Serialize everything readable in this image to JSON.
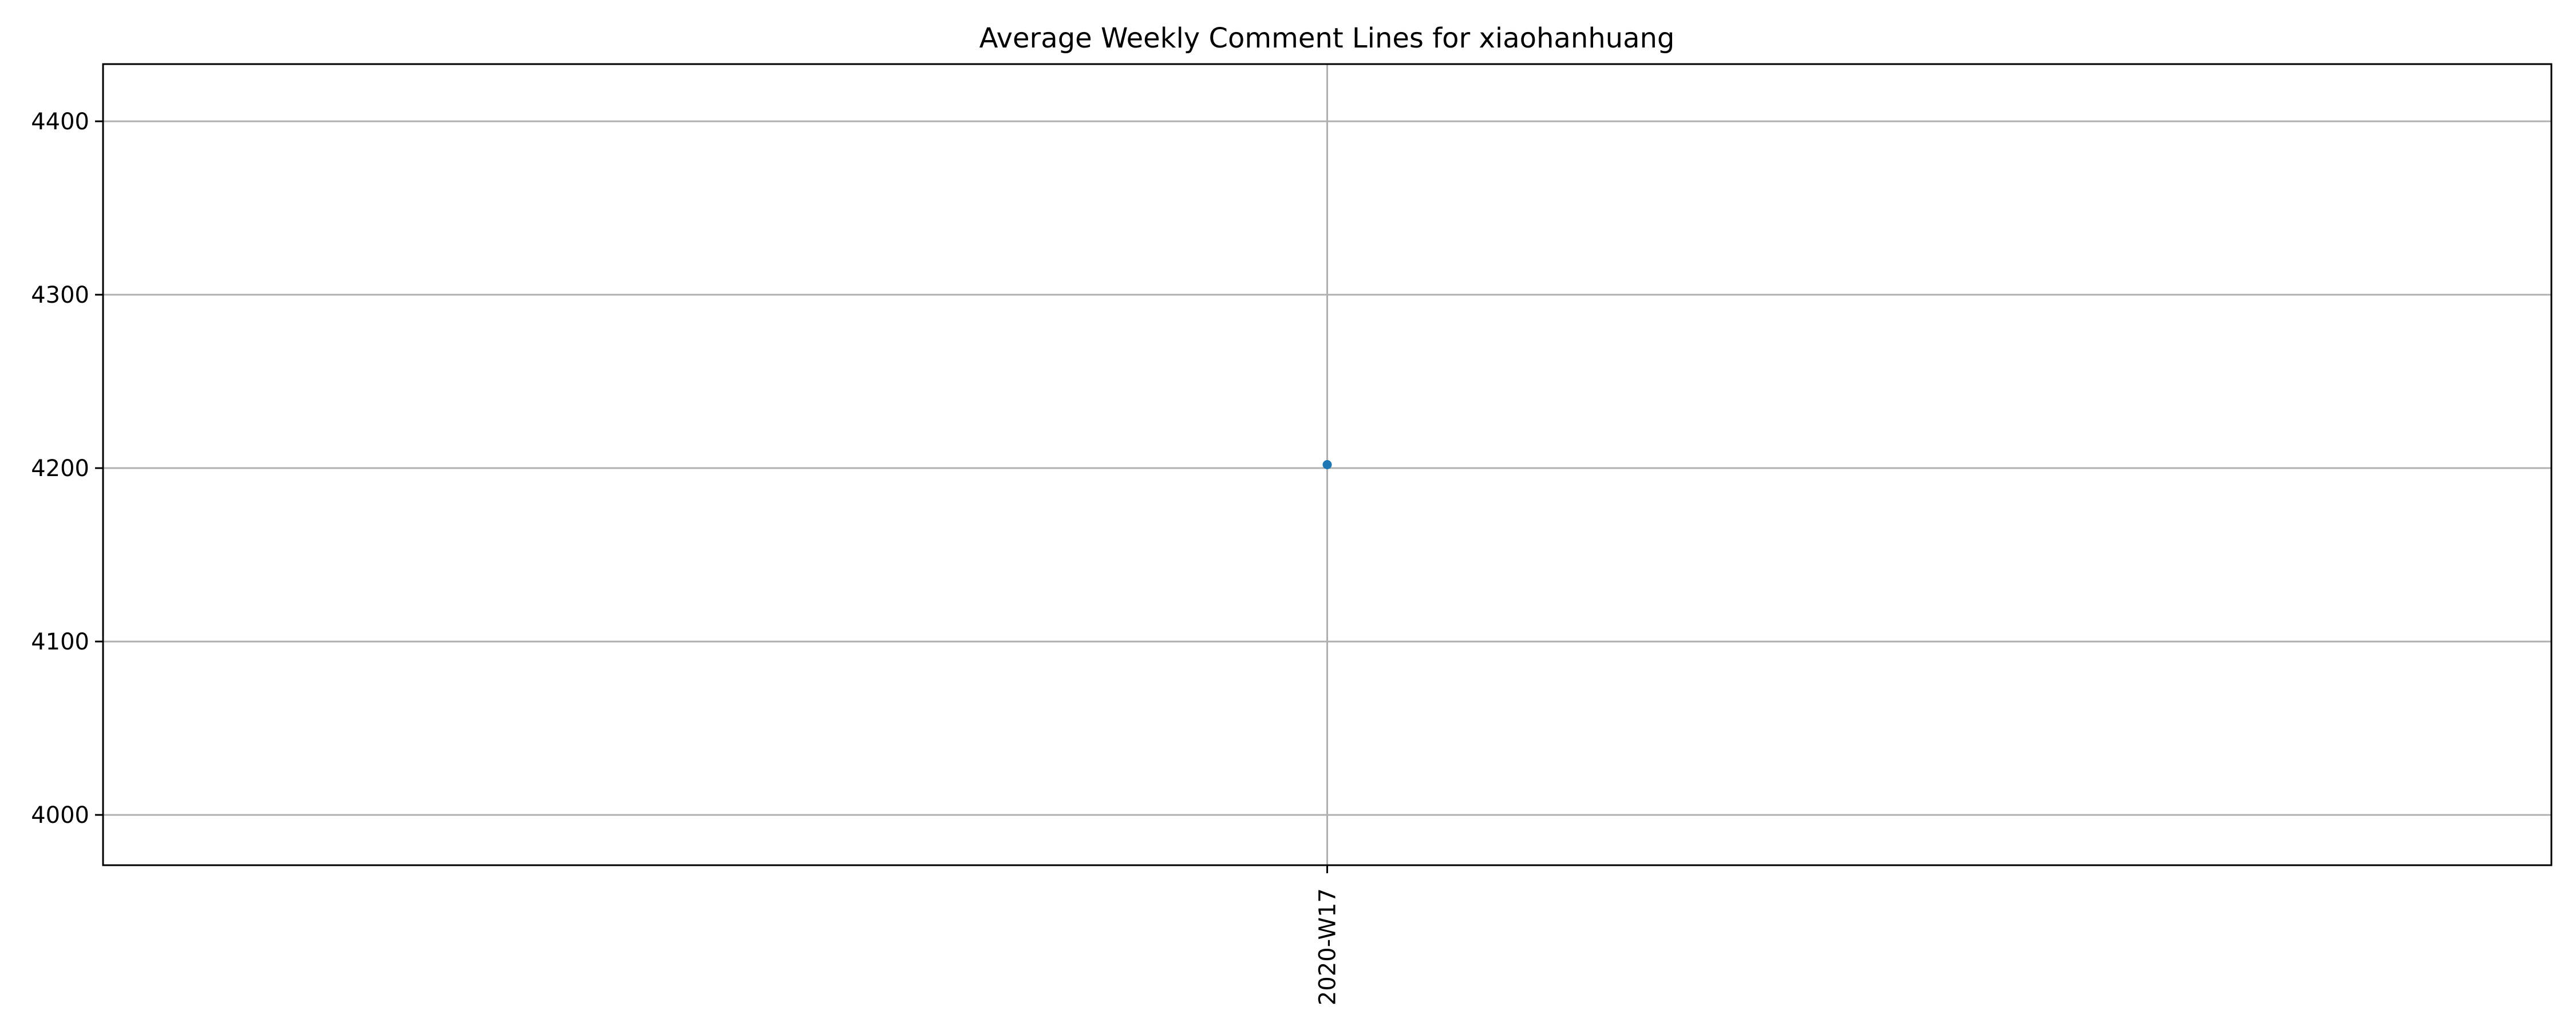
{
  "chart_data": {
    "type": "line",
    "title": "Average Weekly Comment Lines for xiaohanhuang",
    "xlabel": "",
    "ylabel": "",
    "categories": [
      "2020-W17"
    ],
    "series": [
      {
        "values": [
          4202
        ]
      }
    ],
    "ylim": [
      3971,
      4433
    ],
    "yticks": [
      4000,
      4100,
      4200,
      4300,
      4400
    ],
    "grid": true,
    "x_tick_rotation": "vertical",
    "colors": {
      "series": "#1f77b4",
      "grid": "#b0b0b0",
      "axes": "#000000",
      "background": "#ffffff"
    }
  }
}
